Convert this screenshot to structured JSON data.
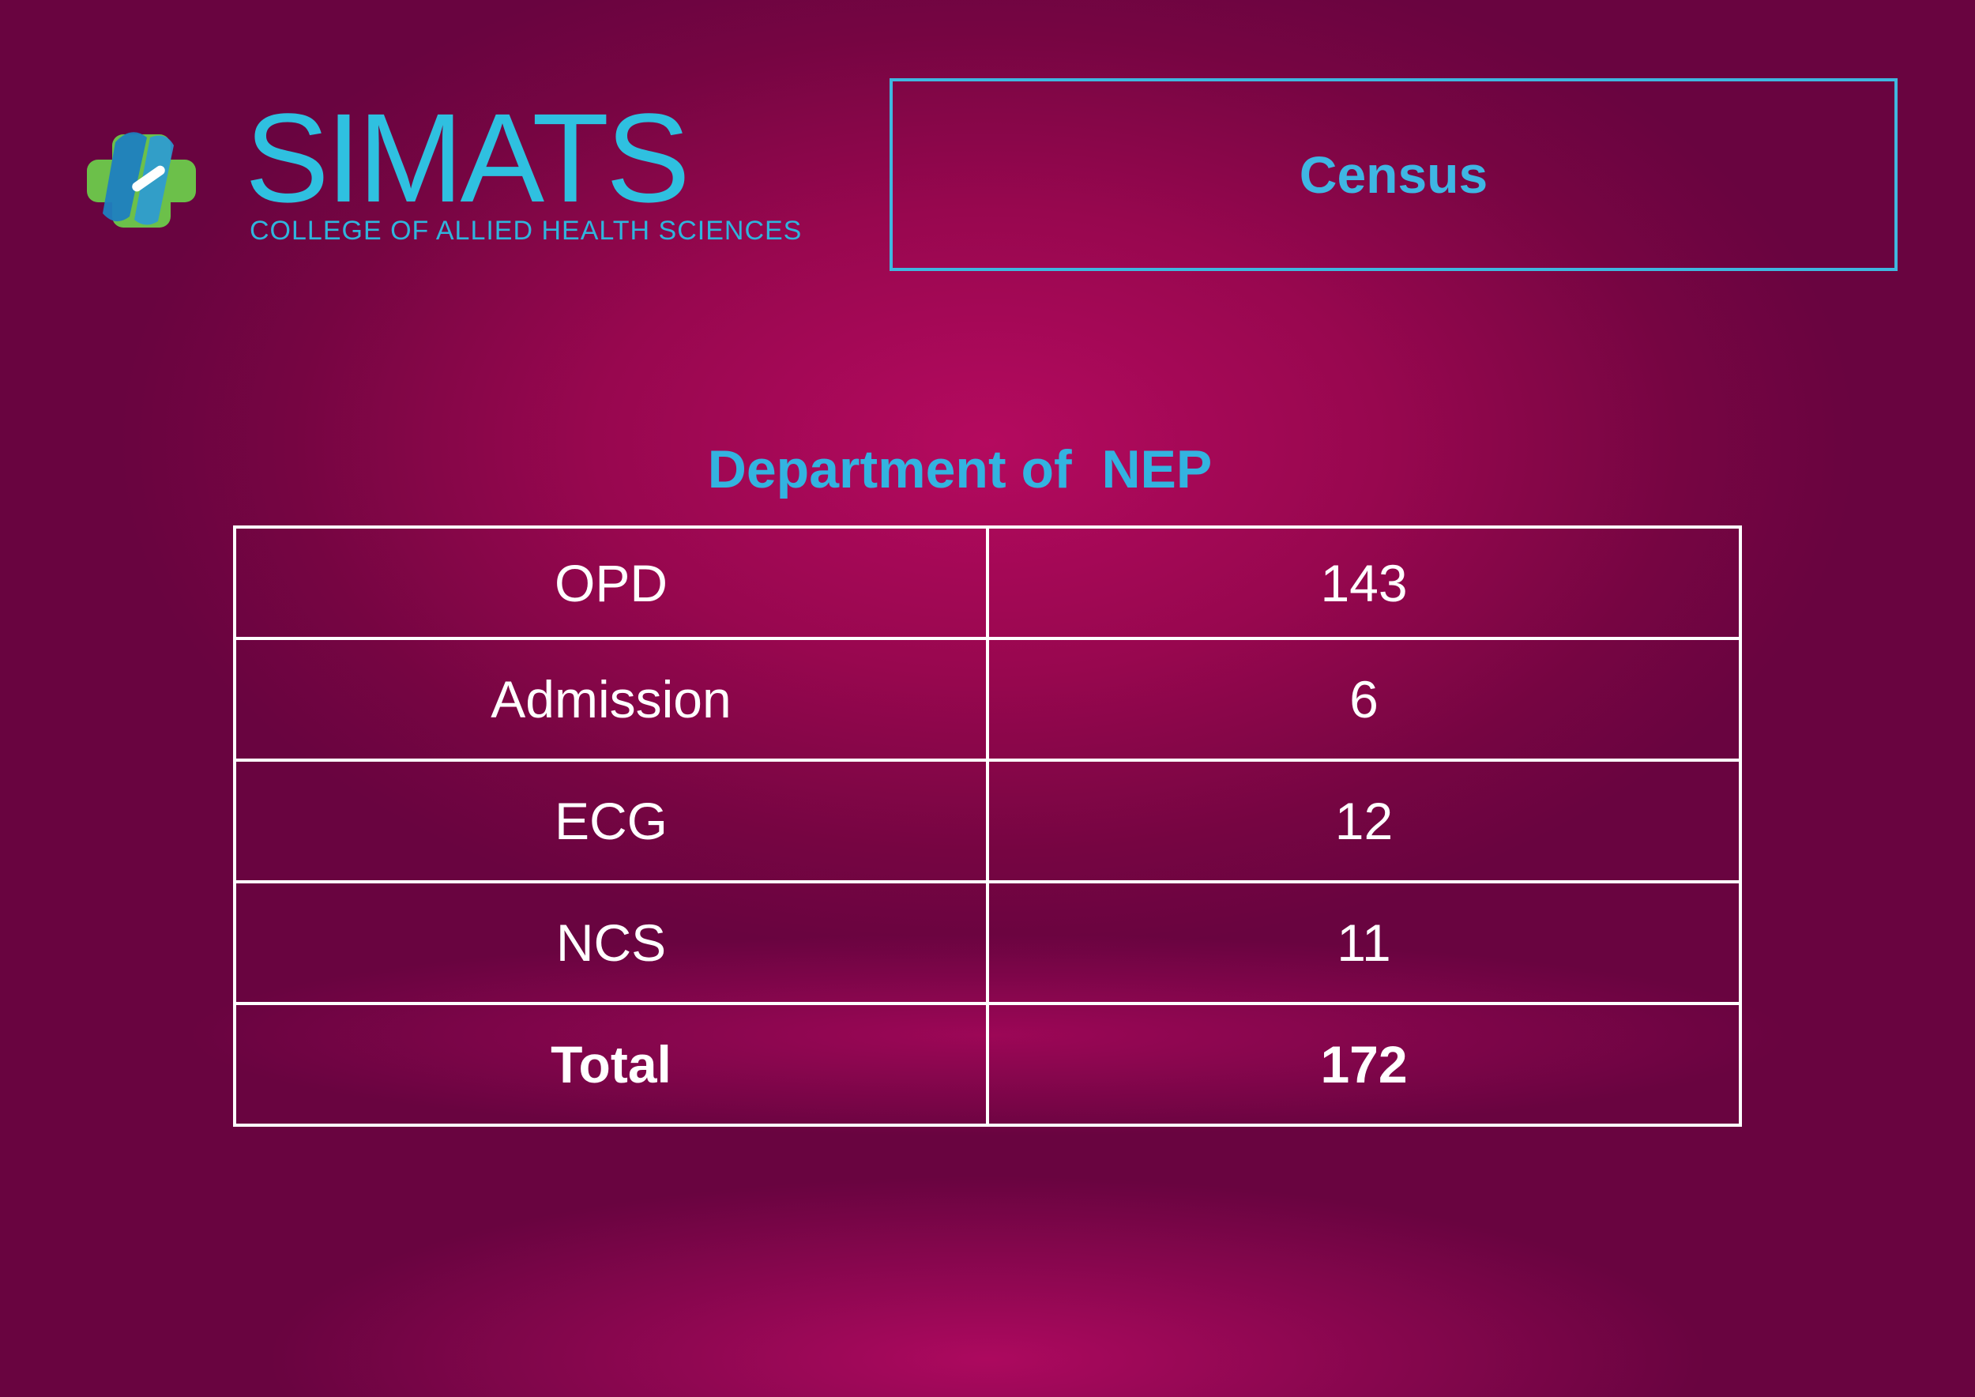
{
  "logo": {
    "name": "SIMATS",
    "subtitle": "COLLEGE OF ALLIED HEALTH SCIENCES"
  },
  "header": {
    "title": "Census"
  },
  "department": {
    "title": "Department of  NEP"
  },
  "table": {
    "rows": [
      {
        "label": "OPD",
        "value": "143"
      },
      {
        "label": "Admission",
        "value": "6"
      },
      {
        "label": "ECG",
        "value": "12"
      },
      {
        "label": "NCS",
        "value": "11"
      }
    ],
    "total": {
      "label": "Total",
      "value": "172"
    }
  },
  "colors": {
    "background": "#9a0752",
    "accent": "#33b3e0",
    "logo_green": "#6cc04a",
    "logo_blue": "#1f7fc0"
  }
}
